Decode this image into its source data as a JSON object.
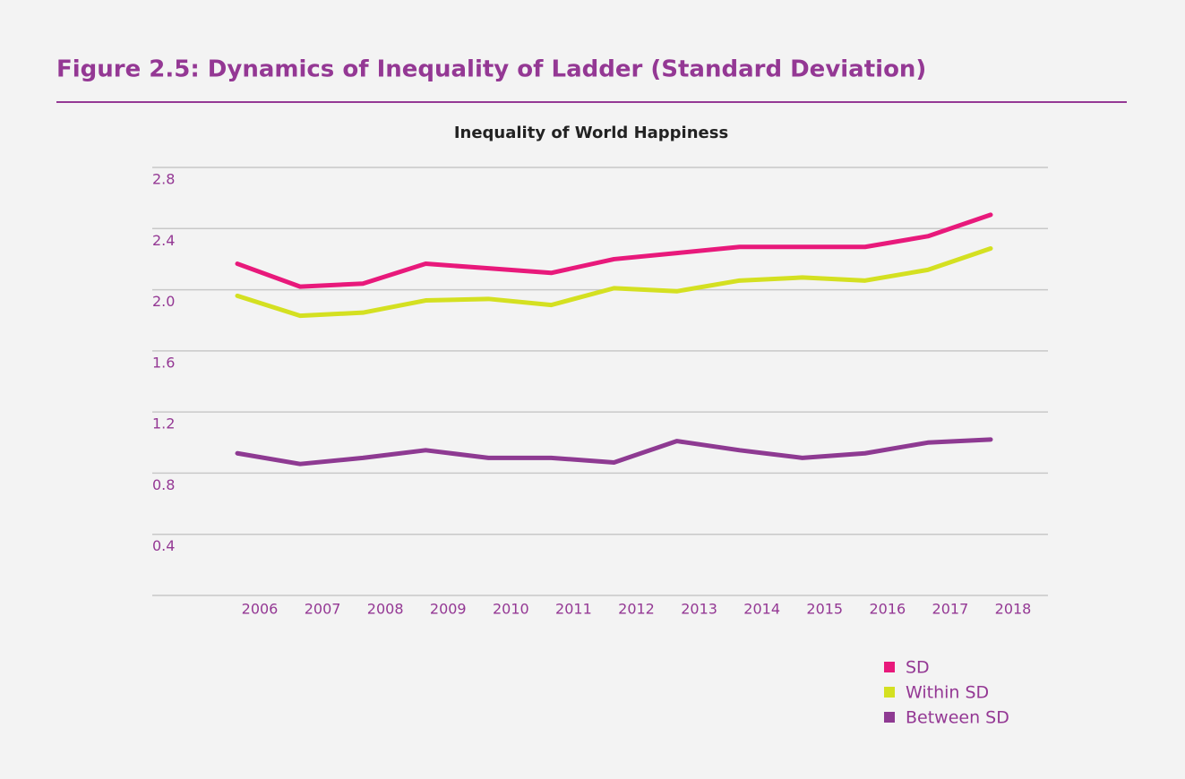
{
  "header": {
    "title": "Figure 2.5: Dynamics of Inequality of Ladder (Standard Deviation)"
  },
  "chart_data": {
    "type": "line",
    "title": "Inequality of World Happiness",
    "categories": [
      "2006",
      "2007",
      "2008",
      "2009",
      "2010",
      "2011",
      "2012",
      "2013",
      "2014",
      "2015",
      "2016",
      "2017",
      "2018"
    ],
    "series": [
      {
        "name": "SD",
        "color": "#e8197b",
        "values": [
          2.17,
          2.02,
          2.04,
          2.17,
          2.14,
          2.11,
          2.2,
          2.24,
          2.28,
          2.28,
          2.28,
          2.35,
          2.49
        ]
      },
      {
        "name": "Within SD",
        "color": "#d4e021",
        "values": [
          1.96,
          1.83,
          1.85,
          1.93,
          1.94,
          1.9,
          2.01,
          1.99,
          2.06,
          2.08,
          2.06,
          2.13,
          2.27
        ]
      },
      {
        "name": "Between SD",
        "color": "#8e3a92",
        "values": [
          0.93,
          0.86,
          0.9,
          0.95,
          0.9,
          0.9,
          0.87,
          1.01,
          0.95,
          0.9,
          0.93,
          1.0,
          1.02
        ]
      }
    ],
    "ylim": [
      0,
      2.8
    ],
    "yticks": [
      0.4,
      0.8,
      1.2,
      1.6,
      {
        "value": 2,
        "label": "2.0"
      },
      2.4,
      2.8
    ],
    "grid": true,
    "legend": "bottom-right"
  }
}
